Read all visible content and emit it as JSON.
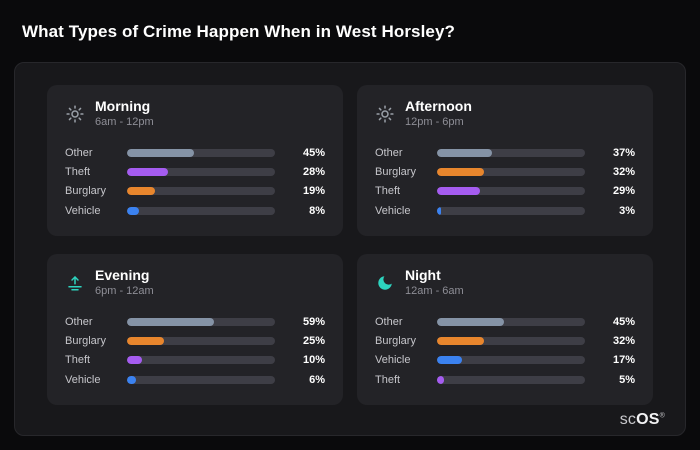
{
  "page_title": "What Types of Crime Happen When in West Horsley?",
  "brand": {
    "sc": "sc",
    "os": "OS",
    "reg": "®"
  },
  "palette": {
    "track": "#3e3e46",
    "other": "#8593a6",
    "theft": "#a55cf0",
    "burglary": "#e8862d",
    "vehicle": "#3b82f0",
    "sun_icon": "#9aa0a8",
    "teal_icon": "#2dd4bf"
  },
  "cards": [
    {
      "id": "morning",
      "title": "Morning",
      "subtitle": "6am - 12pm",
      "icon": "sun-icon",
      "icon_color": "#9aa0a8",
      "rows": [
        {
          "label": "Other",
          "value": 45,
          "display": "45%",
          "color_key": "other"
        },
        {
          "label": "Theft",
          "value": 28,
          "display": "28%",
          "color_key": "theft"
        },
        {
          "label": "Burglary",
          "value": 19,
          "display": "19%",
          "color_key": "burglary"
        },
        {
          "label": "Vehicle",
          "value": 8,
          "display": "8%",
          "color_key": "vehicle"
        }
      ]
    },
    {
      "id": "afternoon",
      "title": "Afternoon",
      "subtitle": "12pm - 6pm",
      "icon": "sun-icon",
      "icon_color": "#9aa0a8",
      "rows": [
        {
          "label": "Other",
          "value": 37,
          "display": "37%",
          "color_key": "other"
        },
        {
          "label": "Burglary",
          "value": 32,
          "display": "32%",
          "color_key": "burglary"
        },
        {
          "label": "Theft",
          "value": 29,
          "display": "29%",
          "color_key": "theft"
        },
        {
          "label": "Vehicle",
          "value": 3,
          "display": "3%",
          "color_key": "vehicle"
        }
      ]
    },
    {
      "id": "evening",
      "title": "Evening",
      "subtitle": "6pm - 12am",
      "icon": "sunrise-icon",
      "icon_color": "#2dd4bf",
      "rows": [
        {
          "label": "Other",
          "value": 59,
          "display": "59%",
          "color_key": "other"
        },
        {
          "label": "Burglary",
          "value": 25,
          "display": "25%",
          "color_key": "burglary"
        },
        {
          "label": "Theft",
          "value": 10,
          "display": "10%",
          "color_key": "theft"
        },
        {
          "label": "Vehicle",
          "value": 6,
          "display": "6%",
          "color_key": "vehicle"
        }
      ]
    },
    {
      "id": "night",
      "title": "Night",
      "subtitle": "12am - 6am",
      "icon": "moon-icon",
      "icon_color": "#2dd4bf",
      "rows": [
        {
          "label": "Other",
          "value": 45,
          "display": "45%",
          "color_key": "other"
        },
        {
          "label": "Burglary",
          "value": 32,
          "display": "32%",
          "color_key": "burglary"
        },
        {
          "label": "Vehicle",
          "value": 17,
          "display": "17%",
          "color_key": "vehicle"
        },
        {
          "label": "Theft",
          "value": 5,
          "display": "5%",
          "color_key": "theft"
        }
      ]
    }
  ],
  "chart_data": [
    {
      "type": "bar",
      "orientation": "horizontal",
      "title": "Morning",
      "subtitle": "6am - 12pm",
      "categories": [
        "Other",
        "Theft",
        "Burglary",
        "Vehicle"
      ],
      "values": [
        45,
        28,
        19,
        8
      ],
      "unit": "%",
      "xlim": [
        0,
        100
      ],
      "grid": false,
      "legend": false
    },
    {
      "type": "bar",
      "orientation": "horizontal",
      "title": "Afternoon",
      "subtitle": "12pm - 6pm",
      "categories": [
        "Other",
        "Burglary",
        "Theft",
        "Vehicle"
      ],
      "values": [
        37,
        32,
        29,
        3
      ],
      "unit": "%",
      "xlim": [
        0,
        100
      ],
      "grid": false,
      "legend": false
    },
    {
      "type": "bar",
      "orientation": "horizontal",
      "title": "Evening",
      "subtitle": "6pm - 12am",
      "categories": [
        "Other",
        "Burglary",
        "Theft",
        "Vehicle"
      ],
      "values": [
        59,
        25,
        10,
        6
      ],
      "unit": "%",
      "xlim": [
        0,
        100
      ],
      "grid": false,
      "legend": false
    },
    {
      "type": "bar",
      "orientation": "horizontal",
      "title": "Night",
      "subtitle": "12am - 6am",
      "categories": [
        "Other",
        "Burglary",
        "Vehicle",
        "Theft"
      ],
      "values": [
        45,
        32,
        17,
        5
      ],
      "unit": "%",
      "xlim": [
        0,
        100
      ],
      "grid": false,
      "legend": false
    }
  ]
}
